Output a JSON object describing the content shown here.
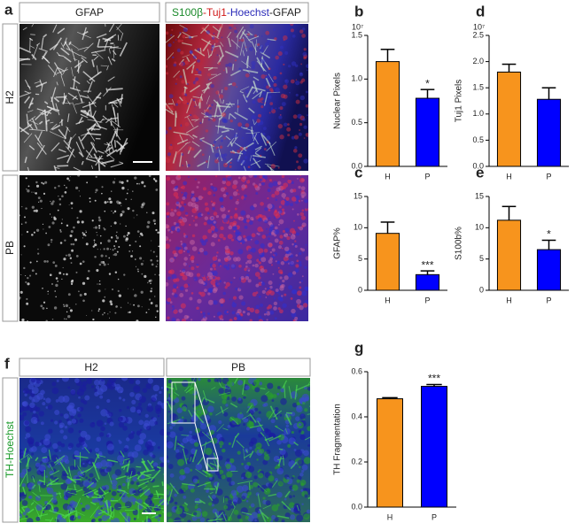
{
  "panels": {
    "a": "a",
    "f": "f"
  },
  "panel_a": {
    "headers": {
      "left": "GFAP",
      "right_parts": [
        {
          "text": "S100β",
          "color": "#1a8a2a"
        },
        {
          "text": "-Tuj1",
          "color": "#d01818"
        },
        {
          "text": "-Hoechst",
          "color": "#2a2ab8"
        },
        {
          "text": "-GFAP",
          "color": "#222222"
        }
      ]
    },
    "rows": [
      "H2",
      "PB"
    ]
  },
  "panel_f": {
    "headers": [
      "H2",
      "PB"
    ],
    "side_label": "TH-Hoechst"
  },
  "chart_data": [
    {
      "type": "bar",
      "panel": "b",
      "ylabel": "Nuclear Pixels",
      "axis_multiplier": "10⁷",
      "categories": [
        "H",
        "P"
      ],
      "series": [
        {
          "colors": [
            "#f7941d",
            "#0000ff"
          ],
          "values": [
            1.2,
            0.78
          ],
          "errors": [
            0.14,
            0.1
          ]
        }
      ],
      "ylim": [
        0,
        1.5
      ],
      "yticks": [
        {
          "value": 0,
          "label": "0.0"
        },
        0.5,
        {
          "value": 1,
          "label": "1.0"
        },
        1.5
      ],
      "annotation": "*"
    },
    {
      "type": "bar",
      "panel": "d",
      "ylabel": "Tuj1 Pixels",
      "axis_multiplier": "10⁷",
      "categories": [
        "H",
        "P"
      ],
      "series": [
        {
          "colors": [
            "#f7941d",
            "#0000ff"
          ],
          "values": [
            1.8,
            1.28
          ],
          "errors": [
            0.15,
            0.22
          ]
        }
      ],
      "ylim": [
        0,
        2.5
      ],
      "yticks": [
        {
          "value": 0,
          "label": "0.0"
        },
        0.5,
        {
          "value": 1,
          "label": "1.0"
        },
        1.5,
        {
          "value": 2,
          "label": "2.0"
        },
        2.5
      ]
    },
    {
      "type": "bar",
      "panel": "c",
      "ylabel": "GFAP%",
      "categories": [
        "H",
        "P"
      ],
      "series": [
        {
          "colors": [
            "#f7941d",
            "#0000ff"
          ],
          "values": [
            9.1,
            2.5
          ],
          "errors": [
            1.8,
            0.6
          ]
        }
      ],
      "ylim": [
        0,
        15
      ],
      "yticks": [
        0,
        5,
        10,
        15
      ],
      "annotation": "***"
    },
    {
      "type": "bar",
      "panel": "e",
      "ylabel": "S100b%",
      "categories": [
        "H",
        "P"
      ],
      "series": [
        {
          "colors": [
            "#f7941d",
            "#0000ff"
          ],
          "values": [
            11.2,
            6.5
          ],
          "errors": [
            2.2,
            1.5
          ]
        }
      ],
      "ylim": [
        0,
        15
      ],
      "yticks": [
        0,
        5,
        10,
        15
      ],
      "annotation": "*"
    },
    {
      "type": "bar",
      "panel": "g",
      "ylabel": "TH Fragmentation",
      "categories": [
        "H",
        "P"
      ],
      "series": [
        {
          "colors": [
            "#f7941d",
            "#0000ff"
          ],
          "values": [
            0.48,
            0.535
          ],
          "errors": [
            0.005,
            0.008
          ]
        }
      ],
      "ylim": [
        0,
        0.6
      ],
      "yticks": [
        {
          "value": 0,
          "label": "0.0"
        },
        0.2,
        0.4,
        0.6
      ],
      "annotation": "***"
    }
  ]
}
